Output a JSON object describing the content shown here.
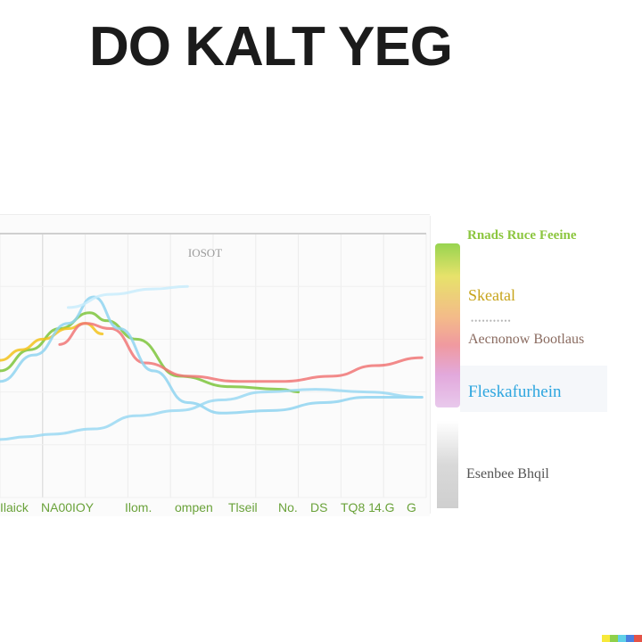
{
  "title": "DO KALT YEG",
  "chart_data": {
    "type": "line",
    "title": "DO KALT YEG",
    "annotation": "IOSOT",
    "x_tick_labels": [
      "Ilaick",
      "NA00IOY",
      "Ilom.",
      "ompen",
      "Tlseil",
      "No.",
      "DS",
      "TQ8 1",
      "4.G",
      "G"
    ],
    "xlim": [
      0,
      10
    ],
    "ylim": [
      0,
      100
    ],
    "grid": true,
    "legend": {
      "placement": "right",
      "header": "Rnads Ruce Feeine",
      "subtext": "•••••••••••",
      "items": [
        {
          "label": "Skeatal",
          "color": "#c9a800"
        },
        {
          "label": "Aecnonow Bootlaus",
          "color": "#7a5a4e"
        },
        {
          "label": "Fleskafurhein",
          "color": "#2ea6df"
        },
        {
          "label": "Esenbee Bhqil",
          "color": "#555555"
        }
      ]
    },
    "series": [
      {
        "color": "#7cc43b",
        "x": [
          0,
          0.7,
          1.4,
          2.1,
          2.5,
          3.2,
          4.2,
          5.4,
          6.6,
          7.0
        ],
        "y": [
          48,
          56,
          64,
          70,
          67,
          60,
          46,
          42,
          41,
          40
        ]
      },
      {
        "color": "#f2c21b",
        "x": [
          0,
          0.5,
          1.0,
          1.6,
          2.0,
          2.4
        ],
        "y": [
          52,
          56,
          60,
          64,
          66,
          62
        ]
      },
      {
        "color": "#f07676",
        "x": [
          1.4,
          2.0,
          2.6,
          3.4,
          4.4,
          5.6,
          6.6,
          7.8,
          8.8,
          9.9
        ],
        "y": [
          58,
          66,
          64,
          51,
          46,
          44,
          44,
          46,
          50,
          53
        ]
      },
      {
        "color": "#8fd3f0",
        "x": [
          0,
          0.8,
          1.6,
          2.2,
          2.8,
          3.6,
          4.4,
          5.2,
          6.4,
          7.6,
          8.6,
          9.9
        ],
        "y": [
          44,
          54,
          66,
          76,
          64,
          48,
          36,
          32,
          33,
          36,
          38,
          38
        ]
      },
      {
        "color": "#9ad8f2",
        "x": [
          0,
          0.6,
          1.2,
          2.2,
          3.2,
          4.2,
          5.2,
          6.2,
          7.4,
          8.6,
          9.9
        ],
        "y": [
          22,
          23,
          24,
          26,
          31,
          33,
          37,
          40,
          41,
          40,
          38
        ]
      },
      {
        "color": "#c9ecfb",
        "x": [
          1.6,
          2.6,
          3.6,
          4.4
        ],
        "y": [
          72,
          77,
          79,
          80
        ]
      }
    ]
  },
  "palette": [
    "#f7e93a",
    "#8fd04a",
    "#5fd0e8",
    "#4a7fe0",
    "#e45348"
  ]
}
